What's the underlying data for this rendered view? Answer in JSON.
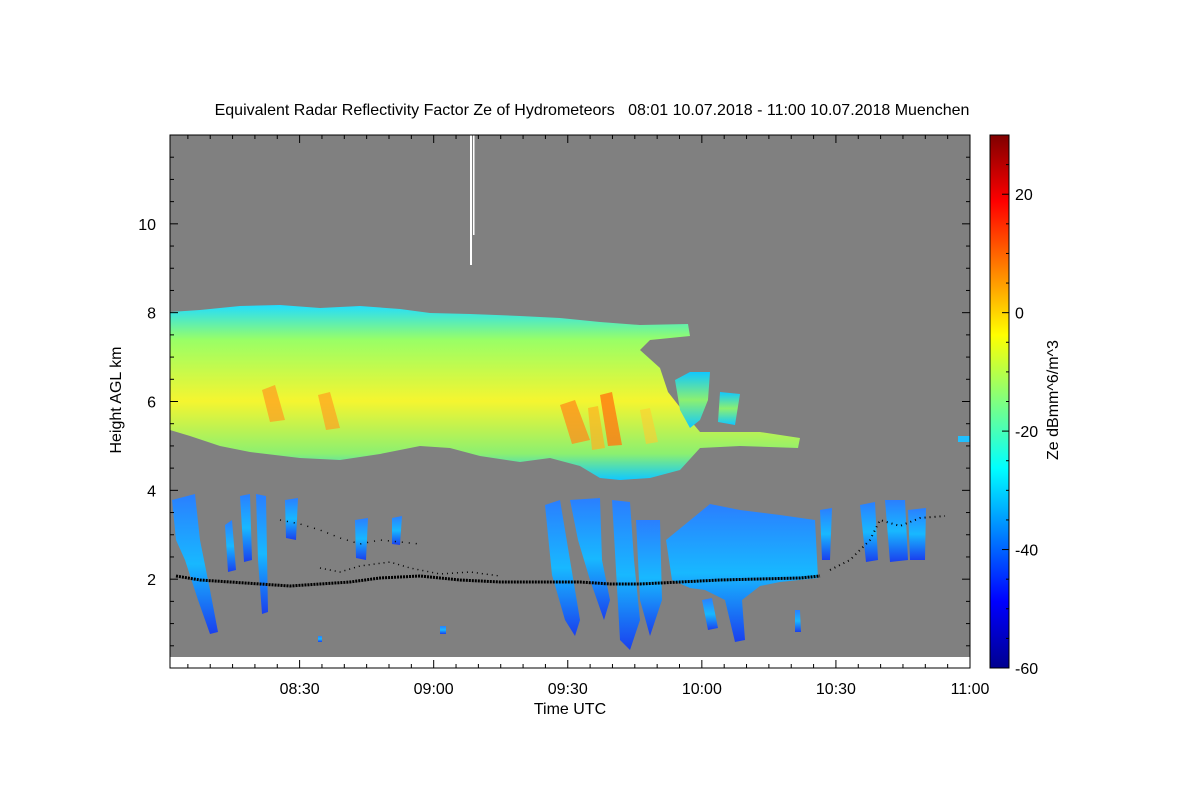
{
  "chart_data": {
    "type": "heatmap",
    "title": "Equivalent Radar Reflectivity Factor Ze of Hydrometeors   08:01 10.07.2018 - 11:00 10.07.2018 Muenchen",
    "xlabel": "Time UTC",
    "ylabel": "Height AGL km",
    "xlim": [
      "08:01",
      "11:00"
    ],
    "ylim": [
      0,
      12
    ],
    "x_ticks": [
      "08:30",
      "09:00",
      "09:30",
      "10:00",
      "10:30",
      "11:00"
    ],
    "y_ticks": [
      2,
      4,
      6,
      8,
      10
    ],
    "colorbar": {
      "label": "Ze dBmm^6/m^3",
      "range": [
        -60,
        30
      ],
      "ticks": [
        20,
        0,
        -20,
        -40,
        -60
      ],
      "colormap": "jet"
    },
    "background_color": "#808080",
    "features": [
      {
        "name": "upper cloud layer",
        "time_range": [
          "08:01",
          "10:23"
        ],
        "height_range": [
          4.2,
          8.1
        ],
        "ze_range": [
          -30,
          5
        ]
      },
      {
        "name": "lower cloud layer",
        "time_range": [
          "08:01",
          "10:52"
        ],
        "height_range": [
          0.2,
          3.9
        ],
        "ze_range": [
          -50,
          -20
        ]
      },
      {
        "name": "cloud base height",
        "time_range": [
          "08:01",
          "10:52"
        ],
        "height_range": [
          1.8,
          3.5
        ]
      }
    ]
  }
}
